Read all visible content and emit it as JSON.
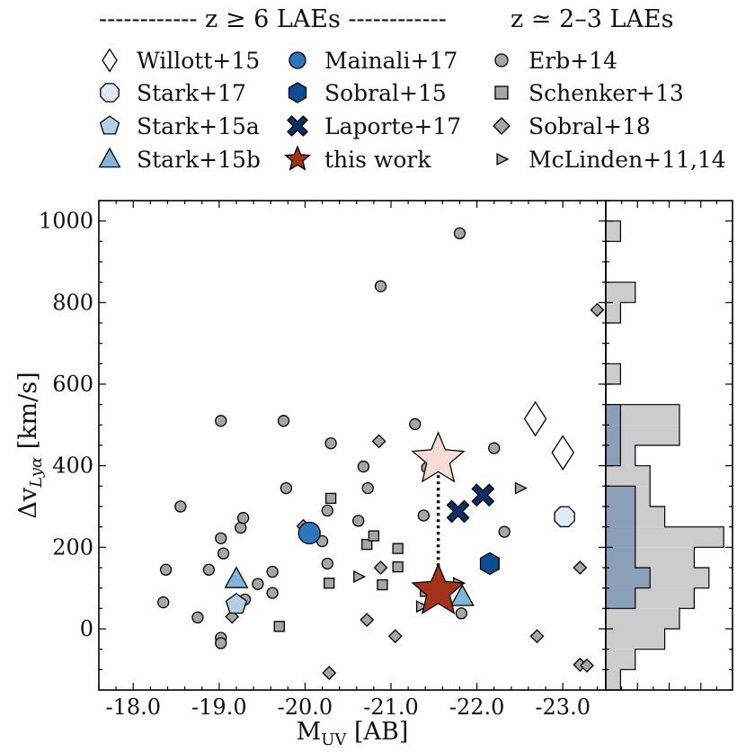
{
  "chart_data": {
    "type": "scatter",
    "xlabel": "M_UV [AB]",
    "ylabel": "Δv_Lyα [km/s]",
    "xlim": [
      -17.6,
      -23.5
    ],
    "ylim": [
      -150,
      1050
    ],
    "x_ticks": [
      -18,
      -19,
      -20,
      -21,
      -22,
      -23
    ],
    "x_tick_labels": [
      "-18.0",
      "-19.0",
      "-20.0",
      "-21.0",
      "-22.0",
      "-23.0"
    ],
    "y_ticks": [
      0,
      200,
      400,
      600,
      800,
      1000
    ],
    "y_tick_labels": [
      "0",
      "200",
      "400",
      "600",
      "800",
      "1000"
    ],
    "legend": {
      "header_highz": "------------ z ≥ 6 LAEs ------------",
      "header_lowz": "z ≃ 2–3 LAEs",
      "entries": [
        {
          "key": "willott15",
          "label": "Willott+15",
          "marker": "diamond",
          "color": "#ffffff"
        },
        {
          "key": "stark17",
          "label": "Stark+17",
          "marker": "octagon",
          "color": "#deebf7"
        },
        {
          "key": "stark15a",
          "label": "Stark+15a",
          "marker": "pentagon",
          "color": "#b5d0e6"
        },
        {
          "key": "stark15b",
          "label": "Stark+15b",
          "marker": "triangle",
          "color": "#7eb6dd"
        },
        {
          "key": "mainali17",
          "label": "Mainali+17",
          "marker": "circle",
          "color": "#2b77bc"
        },
        {
          "key": "sobral15",
          "label": "Sobral+15",
          "marker": "hexagon",
          "color": "#0c4d93"
        },
        {
          "key": "laporte17",
          "label": "Laporte+17",
          "marker": "x",
          "color": "#0a3069"
        },
        {
          "key": "thiswork",
          "label": "this work",
          "marker": "star",
          "color": "#a33318"
        },
        {
          "key": "erb14",
          "label": "Erb+14",
          "marker": "circle",
          "color": "#a6a6a6"
        },
        {
          "key": "schenker13",
          "label": "Schenker+13",
          "marker": "square",
          "color": "#a6a6a6"
        },
        {
          "key": "sobral18",
          "label": "Sobral+18",
          "marker": "diamond",
          "color": "#a6a6a6"
        },
        {
          "key": "mclinden",
          "label": "McLinden+11,14",
          "marker": "triangle-right",
          "color": "#a6a6a6"
        }
      ]
    },
    "series": [
      {
        "name": "Erb+14",
        "marker": "circle",
        "color": "#a6a6a6",
        "points": [
          [
            -18.35,
            65
          ],
          [
            -18.38,
            145
          ],
          [
            -18.55,
            300
          ],
          [
            -18.75,
            28
          ],
          [
            -18.88,
            145
          ],
          [
            -19.02,
            -22
          ],
          [
            -19.02,
            -35
          ],
          [
            -19.02,
            222
          ],
          [
            -19.05,
            185
          ],
          [
            -19.02,
            510
          ],
          [
            -19.25,
            248
          ],
          [
            -19.28,
            272
          ],
          [
            -19.3,
            72
          ],
          [
            -19.45,
            110
          ],
          [
            -19.62,
            140
          ],
          [
            -19.62,
            88
          ],
          [
            -19.75,
            510
          ],
          [
            -19.78,
            345
          ],
          [
            -20.2,
            215
          ],
          [
            -20.26,
            160
          ],
          [
            -20.26,
            290
          ],
          [
            -20.3,
            455
          ],
          [
            -20.62,
            265
          ],
          [
            -20.68,
            398
          ],
          [
            -20.73,
            345
          ],
          [
            -20.88,
            840
          ],
          [
            -21.28,
            502
          ],
          [
            -21.38,
            278
          ],
          [
            -21.42,
            395
          ],
          [
            -21.8,
            970
          ],
          [
            -21.82,
            38
          ],
          [
            -22.2,
            443
          ],
          [
            -22.32,
            238
          ]
        ]
      },
      {
        "name": "Schenker+13",
        "marker": "square",
        "color": "#a6a6a6",
        "points": [
          [
            -19.7,
            6
          ],
          [
            -20.28,
            112
          ],
          [
            -20.3,
            320
          ],
          [
            -20.72,
            207
          ],
          [
            -20.8,
            228
          ],
          [
            -20.9,
            108
          ],
          [
            -21.08,
            197
          ],
          [
            -21.08,
            152
          ],
          [
            -21.4,
            92
          ]
        ]
      },
      {
        "name": "Sobral+18",
        "marker": "diamond",
        "color": "#a6a6a6",
        "points": [
          [
            -19.15,
            30
          ],
          [
            -19.98,
            252
          ],
          [
            -20.28,
            -108
          ],
          [
            -20.72,
            22
          ],
          [
            -20.86,
            460
          ],
          [
            -20.88,
            150
          ],
          [
            -21.05,
            -18
          ],
          [
            -22.7,
            -18
          ],
          [
            -23.2,
            -88
          ],
          [
            -23.28,
            -90
          ],
          [
            -23.2,
            150
          ],
          [
            -23.4,
            782
          ]
        ]
      },
      {
        "name": "McLinden+11,14",
        "marker": "triangle-right",
        "color": "#a6a6a6",
        "points": [
          [
            -20.62,
            128
          ],
          [
            -21.35,
            55
          ],
          [
            -21.78,
            112
          ],
          [
            -22.5,
            345
          ]
        ]
      },
      {
        "name": "Willott+15",
        "marker": "diamond",
        "color": "#ffffff",
        "points": [
          [
            -22.68,
            515
          ],
          [
            -23.0,
            432
          ]
        ]
      },
      {
        "name": "Stark+17",
        "marker": "octagon",
        "color": "#deebf7",
        "points": [
          [
            -23.02,
            275
          ]
        ]
      },
      {
        "name": "Stark+15a",
        "marker": "pentagon",
        "color": "#b5d0e6",
        "points": [
          [
            -19.2,
            60
          ]
        ]
      },
      {
        "name": "Stark+15b",
        "marker": "triangle",
        "color": "#7eb6dd",
        "points": [
          [
            -19.2,
            122
          ],
          [
            -21.83,
            78
          ]
        ]
      },
      {
        "name": "Mainali+17",
        "marker": "circle",
        "color": "#2b77bc",
        "points": [
          [
            -20.05,
            235
          ]
        ]
      },
      {
        "name": "Sobral+15",
        "marker": "hexagon",
        "color": "#0c4d93",
        "points": [
          [
            -22.15,
            160
          ]
        ]
      },
      {
        "name": "Laporte+17",
        "marker": "x",
        "color": "#0a3069",
        "points": [
          [
            -21.78,
            288
          ],
          [
            -22.07,
            328
          ]
        ]
      },
      {
        "name": "this work",
        "marker": "star",
        "color": "#a33318",
        "points": [
          [
            -21.55,
            92
          ]
        ]
      },
      {
        "name": "this work (alt)",
        "marker": "star",
        "color": "#f6dcd6",
        "points": [
          [
            -21.55,
            415
          ]
        ]
      }
    ],
    "connector": {
      "x": -21.55,
      "y_from": 92,
      "y_to": 415
    },
    "histogram": {
      "orientation": "horizontal",
      "bin_edges": [
        -150,
        -100,
        -50,
        0,
        50,
        100,
        150,
        200,
        250,
        300,
        350,
        400,
        450,
        500,
        550,
        600,
        650,
        700,
        750,
        800,
        850,
        900,
        950,
        1000
      ],
      "all_counts": [
        1,
        2,
        4,
        5,
        6,
        7,
        6,
        8,
        4,
        3,
        3,
        2,
        5,
        5,
        0,
        1,
        0,
        0,
        1,
        2,
        0,
        0,
        1
      ],
      "highz_counts": [
        0,
        0,
        0,
        0,
        2,
        3,
        2,
        2,
        2,
        2,
        0,
        1,
        1,
        1,
        0,
        0,
        0,
        0,
        0,
        0,
        0,
        0,
        0
      ],
      "all_color": "#cccccc",
      "highz_color": "#8aa0b8"
    }
  }
}
